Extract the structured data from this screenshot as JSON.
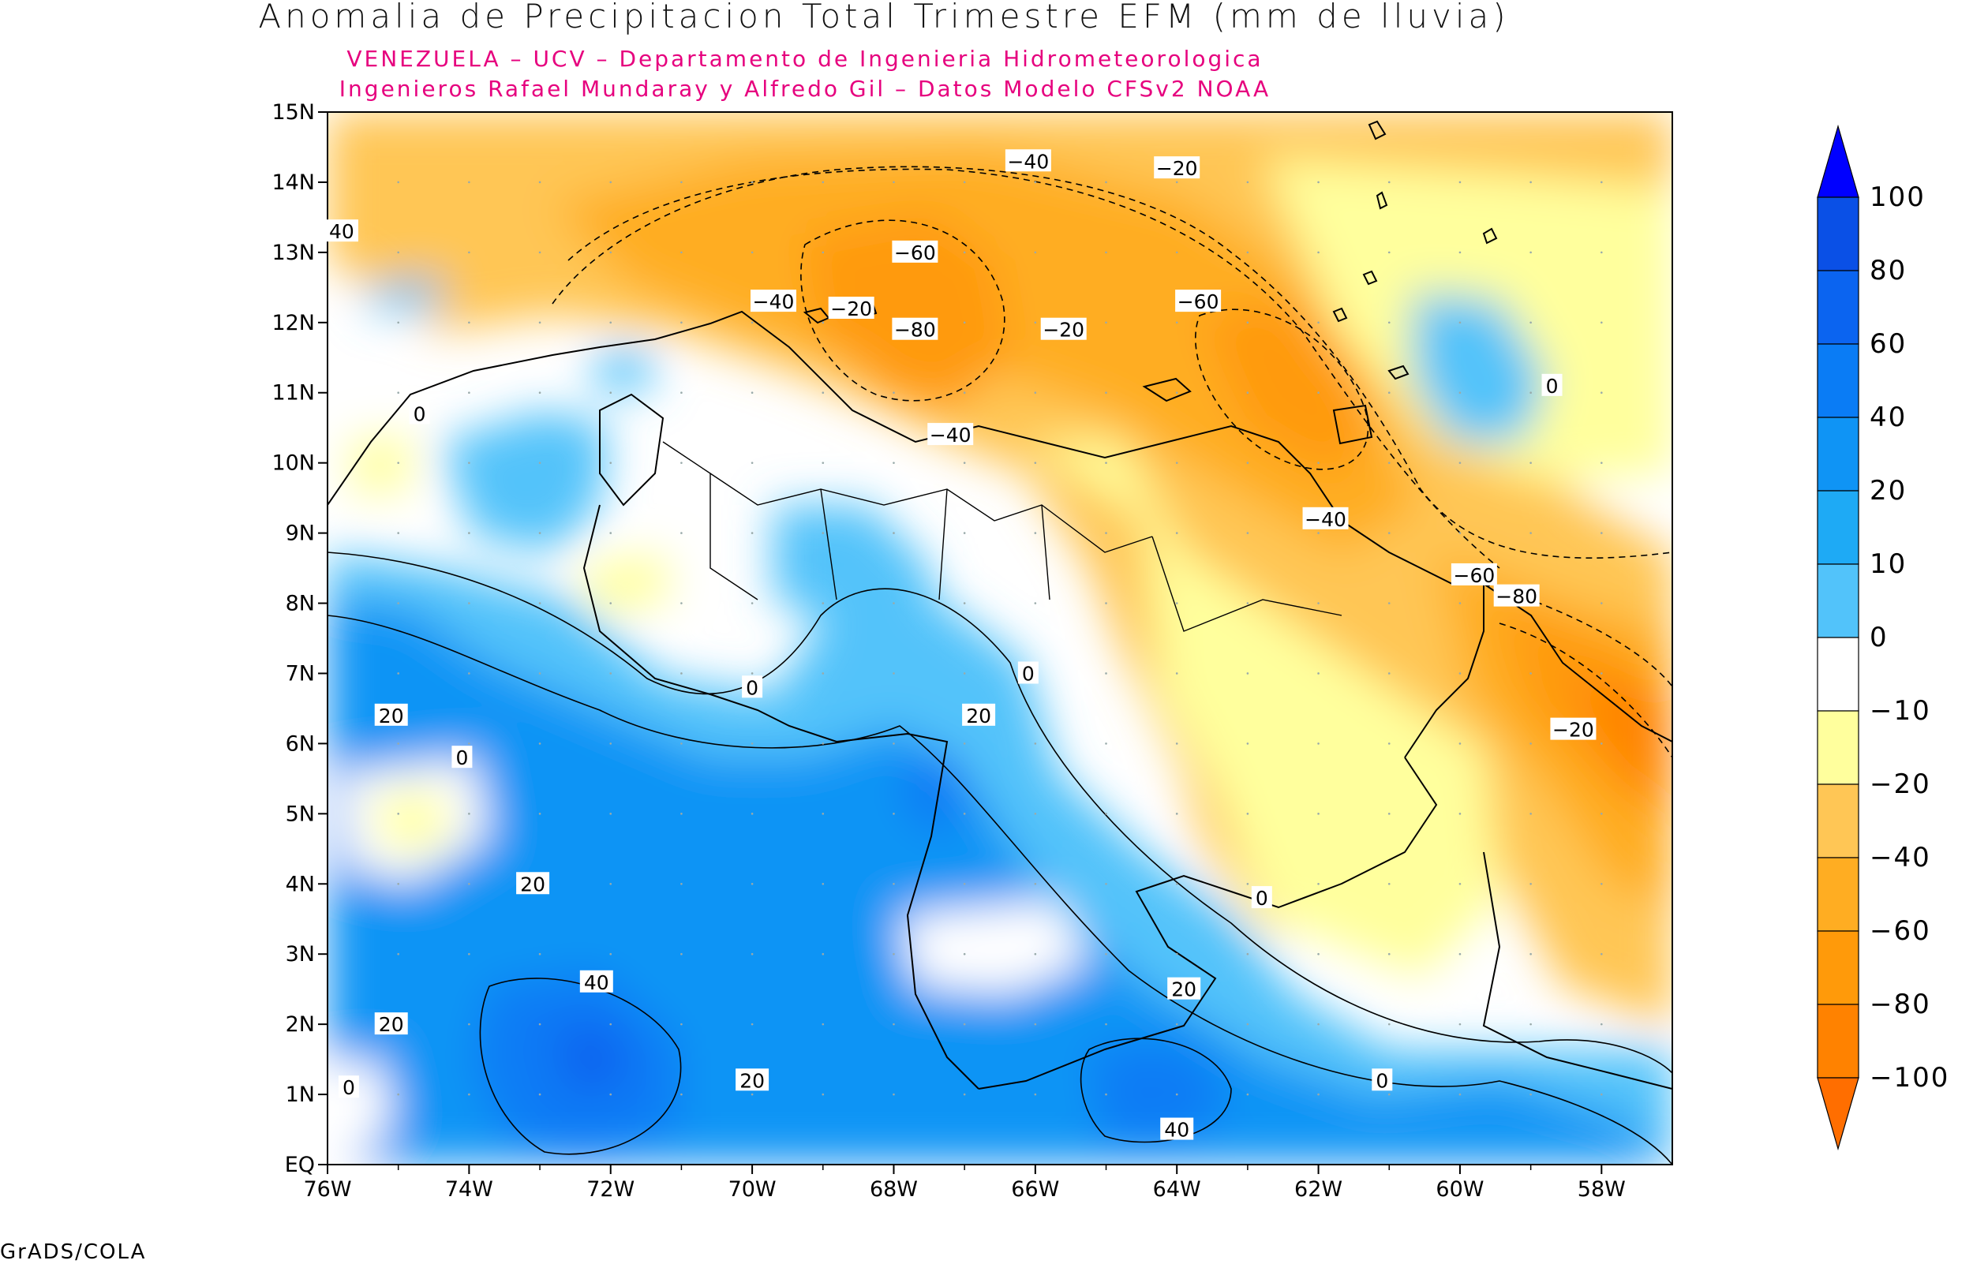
{
  "title": "Anomalia de Precipitacion Total Trimestre EFM (mm de lluvia)",
  "subtitle_1": "VENEZUELA – UCV – Departamento de Ingenieria Hidrometeorologica",
  "subtitle_2": "Ingenieros Rafael Mundaray y Alfredo Gil – Datos Modelo CFSv2 NOAA",
  "credit": "GrADS/COLA",
  "map": {
    "lon_range": [
      -76,
      -57
    ],
    "lat_range": [
      0,
      15
    ],
    "lat_ticks": [
      "15N",
      "14N",
      "13N",
      "12N",
      "11N",
      "10N",
      "9N",
      "8N",
      "7N",
      "6N",
      "5N",
      "4N",
      "3N",
      "2N",
      "1N",
      "EQ"
    ],
    "lon_ticks": [
      "76W",
      "74W",
      "72W",
      "70W",
      "68W",
      "66W",
      "64W",
      "62W",
      "60W",
      "58W"
    ]
  },
  "colorbar": {
    "levels": [
      "100",
      "80",
      "60",
      "40",
      "20",
      "10",
      "0",
      "−10",
      "−20",
      "−40",
      "−60",
      "−80",
      "−100"
    ],
    "colors": [
      "#0000ff",
      "#0a50e6",
      "#0b64f0",
      "#0a7cf5",
      "#0f94f5",
      "#1eaaf5",
      "#52c3fa",
      "#ffffff",
      "#ffff9d",
      "#ffc655",
      "#ffad22",
      "#ff9a0a",
      "#ff8200",
      "#ff6e00"
    ]
  },
  "contour_labels": [
    {
      "text": "−40",
      "lon": -69.7,
      "lat": 12.3
    },
    {
      "text": "−20",
      "lon": -68.6,
      "lat": 12.2
    },
    {
      "text": "−40",
      "lon": -66.1,
      "lat": 14.3
    },
    {
      "text": "−60",
      "lon": -67.7,
      "lat": 13.0
    },
    {
      "text": "−80",
      "lon": -67.7,
      "lat": 11.9
    },
    {
      "text": "−20",
      "lon": -65.6,
      "lat": 11.9
    },
    {
      "text": "−20",
      "lon": -64.0,
      "lat": 14.2
    },
    {
      "text": "−60",
      "lon": -63.7,
      "lat": 12.3
    },
    {
      "text": "−40",
      "lon": -67.2,
      "lat": 10.4
    },
    {
      "text": "−40",
      "lon": -61.9,
      "lat": 9.2
    },
    {
      "text": "−60",
      "lon": -59.8,
      "lat": 8.4
    },
    {
      "text": "−80",
      "lon": -59.2,
      "lat": 8.1
    },
    {
      "text": "−20",
      "lon": -58.4,
      "lat": 6.2
    },
    {
      "text": "0",
      "lon": -74.7,
      "lat": 10.7
    },
    {
      "text": "0",
      "lon": -58.7,
      "lat": 11.1
    },
    {
      "text": "0",
      "lon": -66.1,
      "lat": 7.0
    },
    {
      "text": "0",
      "lon": -70.0,
      "lat": 6.8
    },
    {
      "text": "0",
      "lon": -74.1,
      "lat": 5.8
    },
    {
      "text": "0",
      "lon": -62.8,
      "lat": 3.8
    },
    {
      "text": "0",
      "lon": -61.1,
      "lat": 1.2
    },
    {
      "text": "0",
      "lon": -75.7,
      "lat": 1.1
    },
    {
      "text": "20",
      "lon": -66.8,
      "lat": 6.4
    },
    {
      "text": "20",
      "lon": -75.1,
      "lat": 6.4
    },
    {
      "text": "20",
      "lon": -73.1,
      "lat": 4.0
    },
    {
      "text": "20",
      "lon": -75.1,
      "lat": 2.0
    },
    {
      "text": "20",
      "lon": -70.0,
      "lat": 1.2
    },
    {
      "text": "20",
      "lon": -63.9,
      "lat": 2.5
    },
    {
      "text": "40",
      "lon": -72.2,
      "lat": 2.6
    },
    {
      "text": "40",
      "lon": -64.0,
      "lat": 0.5
    },
    {
      "text": "40",
      "lon": -75.8,
      "lat": 13.3
    }
  ]
}
